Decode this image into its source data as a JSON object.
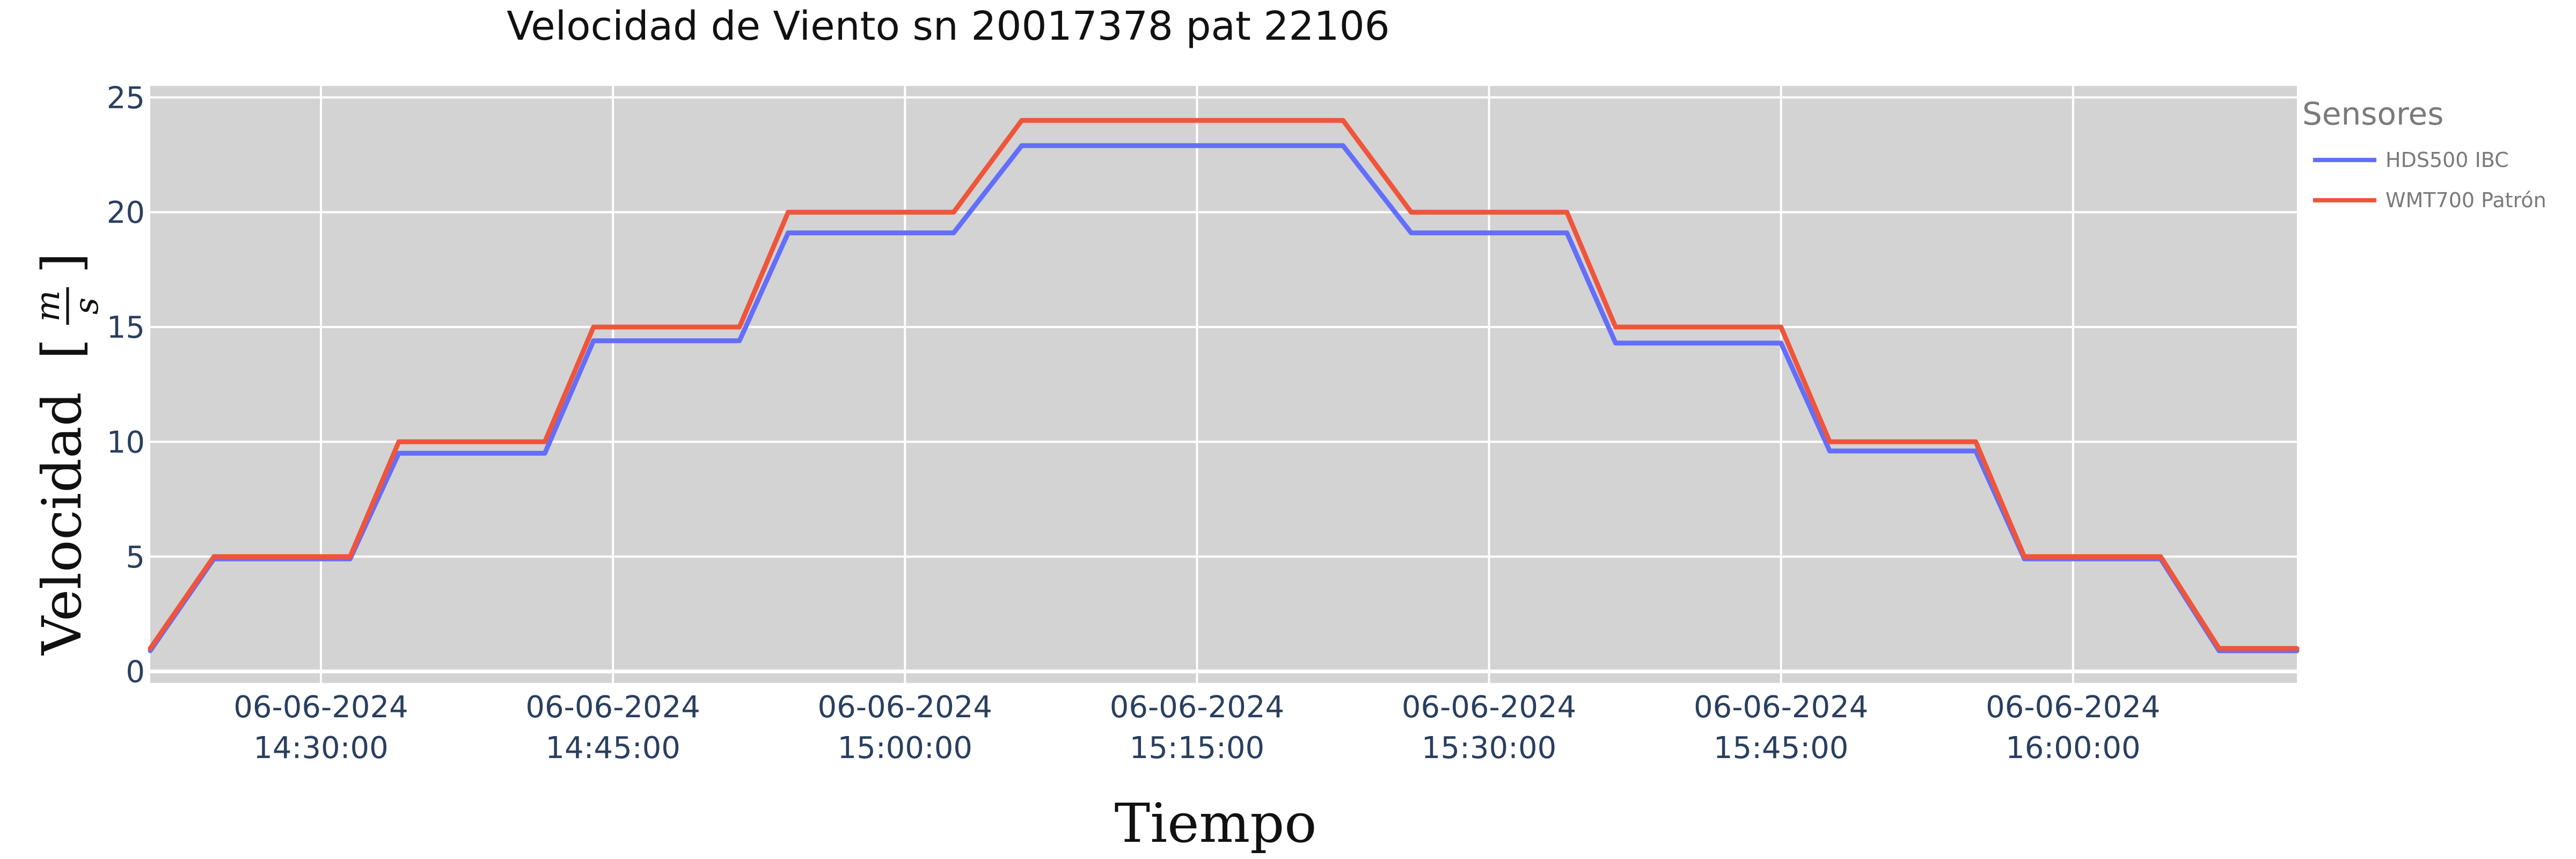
{
  "chart_data": {
    "type": "line",
    "title": "Velocidad de Viento sn 20017378 pat 22106",
    "xlabel": "Tiempo",
    "ylabel": "Velocidad",
    "ylabel_unit_num": "m",
    "ylabel_unit_den": "s",
    "x_tick_dates": [
      "06-06-2024",
      "06-06-2024",
      "06-06-2024",
      "06-06-2024",
      "06-06-2024",
      "06-06-2024",
      "06-06-2024"
    ],
    "x_tick_times": [
      "14:30:00",
      "14:45:00",
      "15:00:00",
      "15:15:00",
      "15:30:00",
      "15:45:00",
      "16:00:00"
    ],
    "x_tick_values": [
      "2024-06-06 14:30:00",
      "2024-06-06 14:45:00",
      "2024-06-06 15:00:00",
      "2024-06-06 15:15:00",
      "2024-06-06 15:30:00",
      "2024-06-06 15:45:00",
      "2024-06-06 16:00:00"
    ],
    "xlim": [
      "2024-06-06 14:21:14",
      "2024-06-06 16:11:30"
    ],
    "y_ticks": [
      "0",
      "5",
      "10",
      "15",
      "20",
      "25"
    ],
    "ylim": [
      -0.5,
      25.5
    ],
    "grid": true,
    "legend_title": "Sensores",
    "legend_position": "top-right",
    "series": [
      {
        "name": "HDS500 IBC",
        "color": "#636efa",
        "x": [
          "2024-06-06 14:21:14",
          "2024-06-06 14:24:30",
          "2024-06-06 14:29:30",
          "2024-06-06 14:31:30",
          "2024-06-06 14:34:00",
          "2024-06-06 14:41:30",
          "2024-06-06 14:44:00",
          "2024-06-06 14:51:30",
          "2024-06-06 14:54:00",
          "2024-06-06 15:02:30",
          "2024-06-06 15:06:00",
          "2024-06-06 15:22:30",
          "2024-06-06 15:26:00",
          "2024-06-06 15:34:00",
          "2024-06-06 15:36:30",
          "2024-06-06 15:45:00",
          "2024-06-06 15:47:30",
          "2024-06-06 15:55:00",
          "2024-06-06 15:57:30",
          "2024-06-06 16:04:30",
          "2024-06-06 16:07:30",
          "2024-06-06 16:11:30"
        ],
        "y": [
          0.9,
          4.9,
          4.9,
          4.9,
          9.5,
          9.5,
          14.4,
          14.4,
          19.1,
          19.1,
          22.9,
          22.9,
          19.1,
          19.1,
          14.3,
          14.3,
          9.6,
          9.6,
          4.9,
          4.9,
          0.9,
          0.9
        ]
      },
      {
        "name": "WMT700 Patrón",
        "color": "#ef553b",
        "x": [
          "2024-06-06 14:21:14",
          "2024-06-06 14:24:30",
          "2024-06-06 14:29:30",
          "2024-06-06 14:31:30",
          "2024-06-06 14:34:00",
          "2024-06-06 14:41:30",
          "2024-06-06 14:44:00",
          "2024-06-06 14:51:30",
          "2024-06-06 14:54:00",
          "2024-06-06 15:02:30",
          "2024-06-06 15:06:00",
          "2024-06-06 15:22:30",
          "2024-06-06 15:26:00",
          "2024-06-06 15:34:00",
          "2024-06-06 15:36:30",
          "2024-06-06 15:45:00",
          "2024-06-06 15:47:30",
          "2024-06-06 15:55:00",
          "2024-06-06 15:57:30",
          "2024-06-06 16:04:30",
          "2024-06-06 16:07:30",
          "2024-06-06 16:11:30"
        ],
        "y": [
          1.0,
          5.0,
          5.0,
          5.0,
          10.0,
          10.0,
          15.0,
          15.0,
          20.0,
          20.0,
          24.0,
          24.0,
          20.0,
          20.0,
          15.0,
          15.0,
          10.0,
          10.0,
          5.0,
          5.0,
          1.0,
          1.0
        ]
      }
    ]
  }
}
